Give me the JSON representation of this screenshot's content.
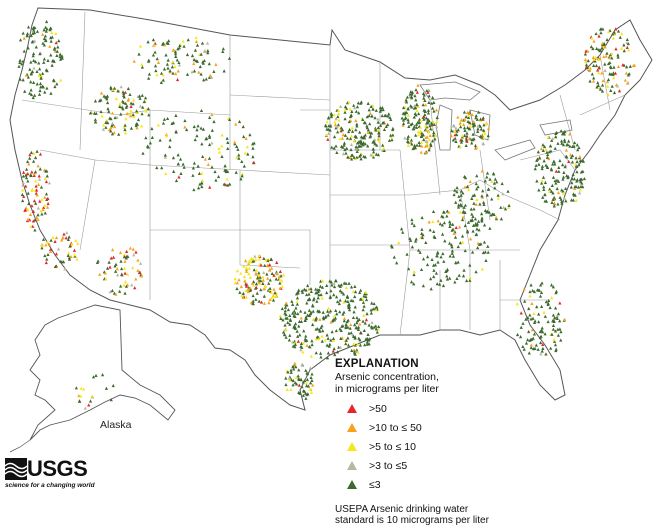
{
  "legend": {
    "title": "EXPLANATION",
    "subtitle_line1": "Arsenic concentration,",
    "subtitle_line2": "in micrograms per liter",
    "items": [
      {
        "label": ">50",
        "color": "#e4262a"
      },
      {
        "label": ">10 to ≤ 50",
        "color": "#f6a21e"
      },
      {
        "label": ">5 to ≤ 10",
        "color": "#f7e61c"
      },
      {
        "label": ">3 to ≤5",
        "color": "#b7b7a2"
      },
      {
        "label": "≤3",
        "color": "#3d6b2f"
      }
    ],
    "footnote_line1": "USEPA Arsenic drinking water",
    "footnote_line2": "standard is 10 micrograms per liter"
  },
  "map": {
    "region_label": "Alaska",
    "land_color": "#ffffff",
    "boundary_color": "#9a9a9a",
    "outline_color": "#555555"
  },
  "logo": {
    "name": "USGS",
    "tagline": "science for a changing world",
    "icon": "usgs-wave-icon"
  }
}
